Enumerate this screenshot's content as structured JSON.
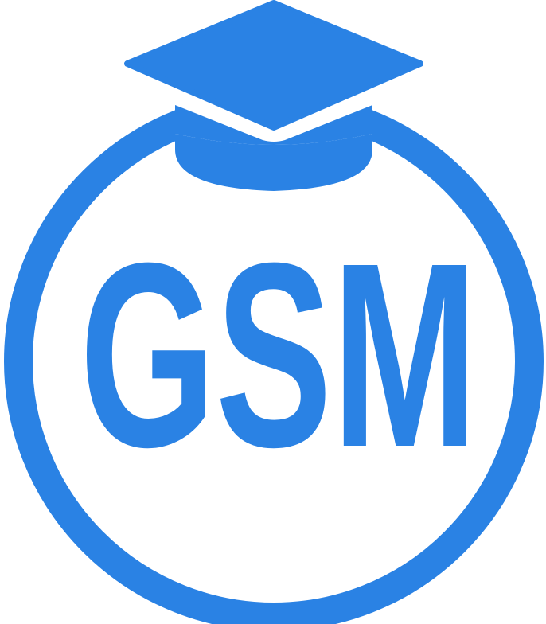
{
  "logo": {
    "text": "GSM",
    "icon": "graduation-cap-icon",
    "color": "#2A82E4",
    "background": "#FFFFFF"
  }
}
